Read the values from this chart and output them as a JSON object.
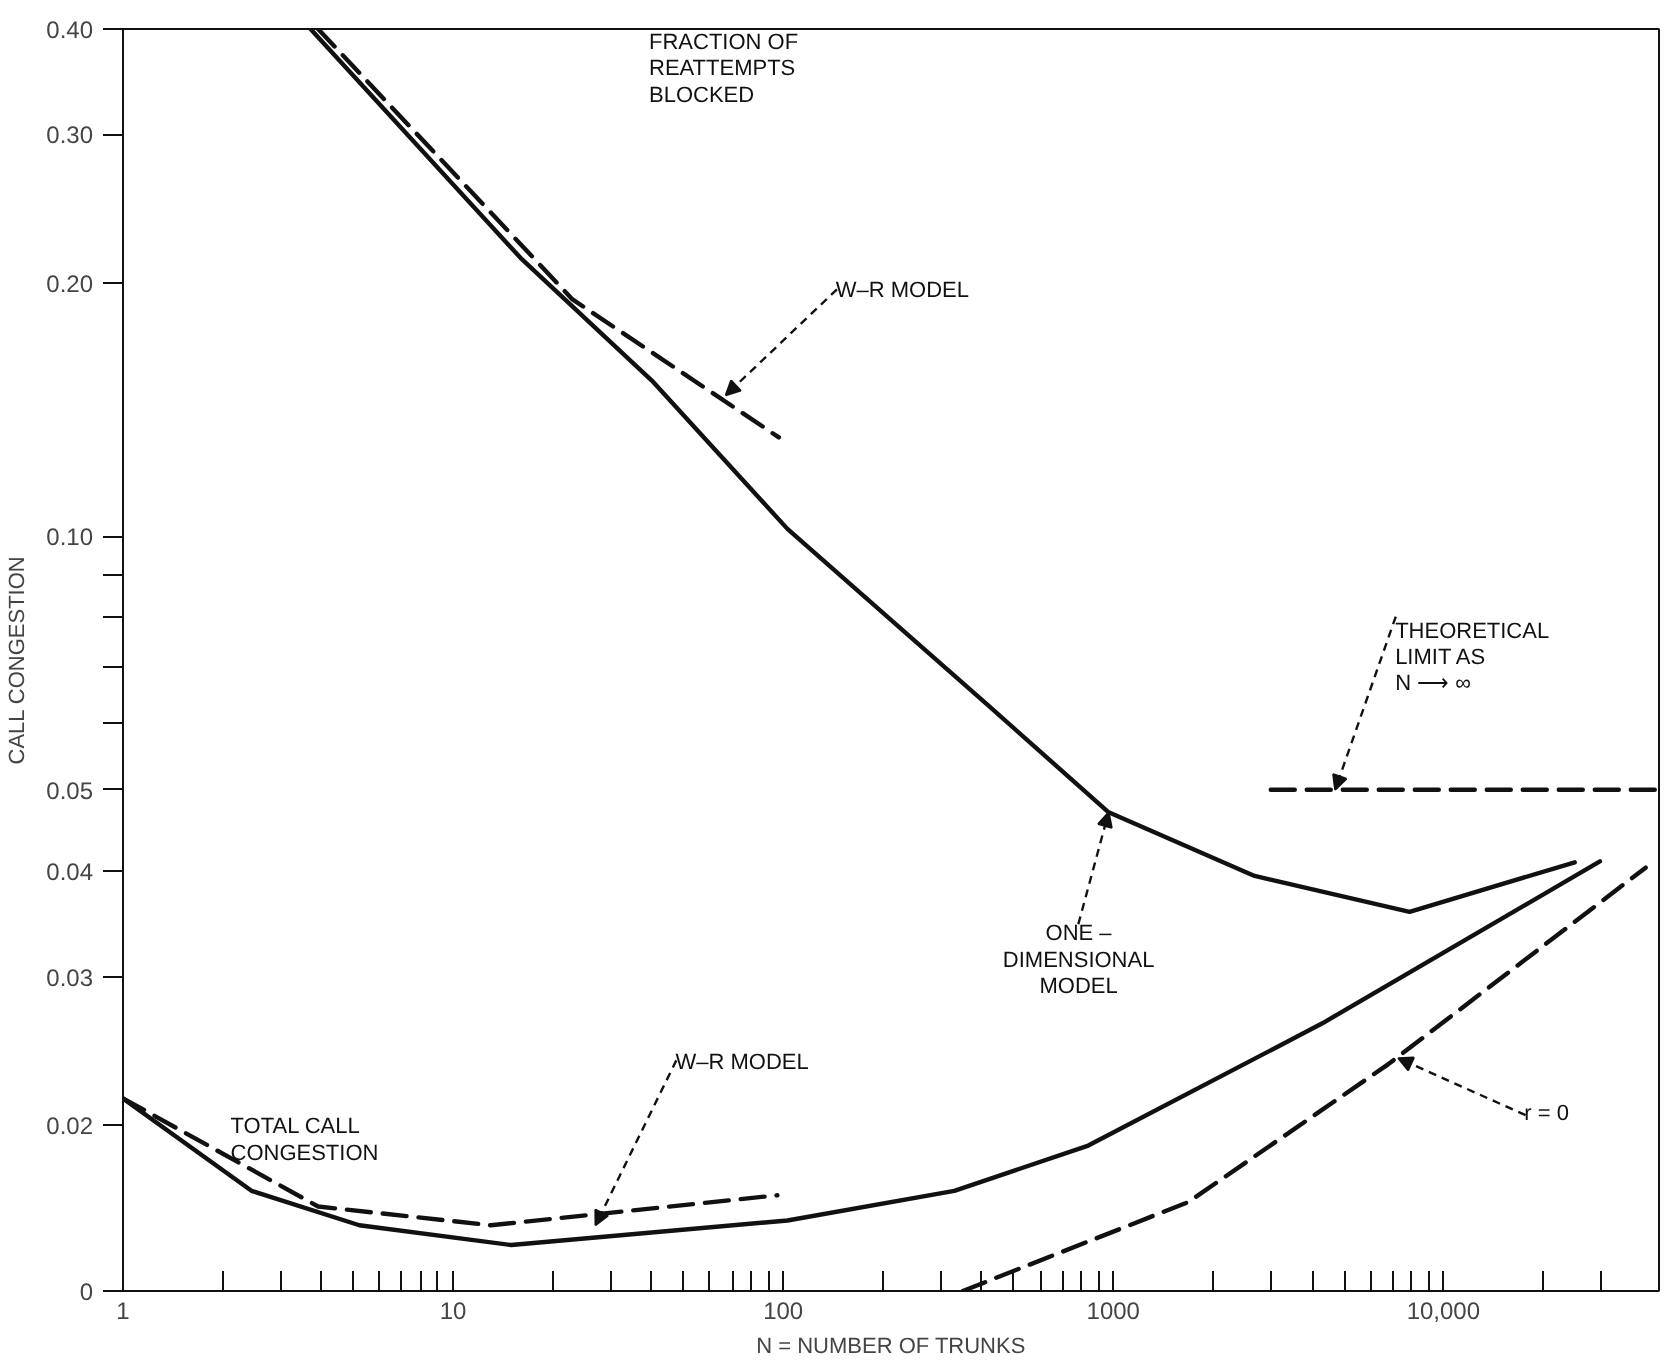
{
  "chart_data": {
    "type": "line",
    "xlabel": "N = NUMBER OF TRUNKS",
    "ylabel": "CALL CONGESTION",
    "log": "xy",
    "grid": false,
    "marker": "none",
    "xlim": [
      1,
      45000
    ],
    "ylim": [
      0.0127,
      0.4
    ],
    "xticks": [
      1,
      {
        "value": 2,
        "label": null
      },
      {
        "value": 3,
        "label": null
      },
      {
        "value": 4,
        "label": null
      },
      {
        "value": 5,
        "label": null
      },
      {
        "value": 6,
        "label": null
      },
      {
        "value": 7,
        "label": null
      },
      {
        "value": 8,
        "label": null
      },
      {
        "value": 9,
        "label": null
      },
      10,
      {
        "value": 20,
        "label": null
      },
      {
        "value": 30,
        "label": null
      },
      {
        "value": 40,
        "label": null
      },
      {
        "value": 50,
        "label": null
      },
      {
        "value": 60,
        "label": null
      },
      {
        "value": 70,
        "label": null
      },
      {
        "value": 80,
        "label": null
      },
      {
        "value": 90,
        "label": null
      },
      100,
      {
        "value": 200,
        "label": null
      },
      {
        "value": 300,
        "label": null
      },
      {
        "value": 400,
        "label": null
      },
      {
        "value": 500,
        "label": null
      },
      {
        "value": 600,
        "label": null
      },
      {
        "value": 700,
        "label": null
      },
      {
        "value": 800,
        "label": null
      },
      {
        "value": 900,
        "label": null
      },
      1000,
      {
        "value": 2000,
        "label": null
      },
      {
        "value": 3000,
        "label": null
      },
      {
        "value": 4000,
        "label": null
      },
      {
        "value": 5000,
        "label": null
      },
      {
        "value": 6000,
        "label": null
      },
      {
        "value": 7000,
        "label": null
      },
      {
        "value": 8000,
        "label": null
      },
      {
        "value": 9000,
        "label": null
      },
      {
        "value": 10000,
        "label": "10,000"
      },
      {
        "value": 20000,
        "label": null
      },
      {
        "value": 30000,
        "label": null
      }
    ],
    "yticks": [
      {
        "value": 0.0127,
        "label": "0"
      },
      0.02,
      0.03,
      0.04,
      0.05,
      {
        "value": 0.06,
        "label": null
      },
      {
        "value": 0.07,
        "label": null
      },
      {
        "value": 0.08,
        "label": null
      },
      {
        "value": 0.09,
        "label": null
      },
      {
        "value": 0.1,
        "label": "0.10"
      },
      {
        "value": 0.2,
        "label": "0.20"
      },
      {
        "value": 0.3,
        "label": "0.30"
      },
      {
        "value": 0.4,
        "label": "0.40"
      }
    ],
    "series": [
      {
        "color": "#111111",
        "line_style": "solid",
        "x": [
          3.7,
          16,
          40,
          103,
          417,
          968,
          2680,
          7900,
          25000
        ],
        "values": [
          0.4,
          0.214,
          0.153,
          0.102,
          0.063,
          0.047,
          0.0395,
          0.0358,
          0.041
        ]
      },
      {
        "color": "#111111",
        "line_style": "dashed",
        "x": [
          3.9,
          23,
          97
        ],
        "values": [
          0.4,
          0.191,
          0.131
        ]
      },
      {
        "color": "#111111",
        "line_style": "dashed",
        "x": [
          3000,
          45000
        ],
        "values": [
          0.05,
          0.05
        ]
      },
      {
        "color": "#111111",
        "line_style": "solid",
        "x": [
          1,
          2.45,
          5.2,
          15,
          103,
          330,
          840,
          4300,
          29800
        ],
        "values": [
          0.0215,
          0.0167,
          0.0152,
          0.0144,
          0.0154,
          0.0167,
          0.0189,
          0.0264,
          0.0411
        ]
      },
      {
        "color": "#111111",
        "line_style": "dashed",
        "x": [
          1,
          3.9,
          13,
          96
        ],
        "values": [
          0.0215,
          0.016,
          0.0152,
          0.0165
        ]
      },
      {
        "color": "#111111",
        "line_style": "dashed",
        "x": [
          350,
          1690,
          6800,
          41000
        ],
        "values": [
          0.0127,
          0.0162,
          0.0236,
          0.0404
        ]
      }
    ],
    "annotations": [
      "FRACTION OF\nREATTEMPTS\nBLOCKED",
      {
        "text": "W–R MODEL",
        "x": 67,
        "y": 0.147
      },
      {
        "text": "THEORETICAL\nLIMIT AS\nN ⟶ ∞",
        "x": 4700,
        "y": 0.05
      },
      {
        "text": "ONE –\nDIMENSIONAL\nMODEL",
        "x": 968,
        "y": 0.047
      },
      {
        "text": "TOTAL CALL\nCONGESTION",
        "x": 3,
        "y": 0.0165
      },
      {
        "text": "W–R MODEL",
        "x": 27,
        "y": 0.0152
      },
      {
        "text": "r = 0",
        "x": 7300,
        "y": 0.024
      }
    ]
  }
}
